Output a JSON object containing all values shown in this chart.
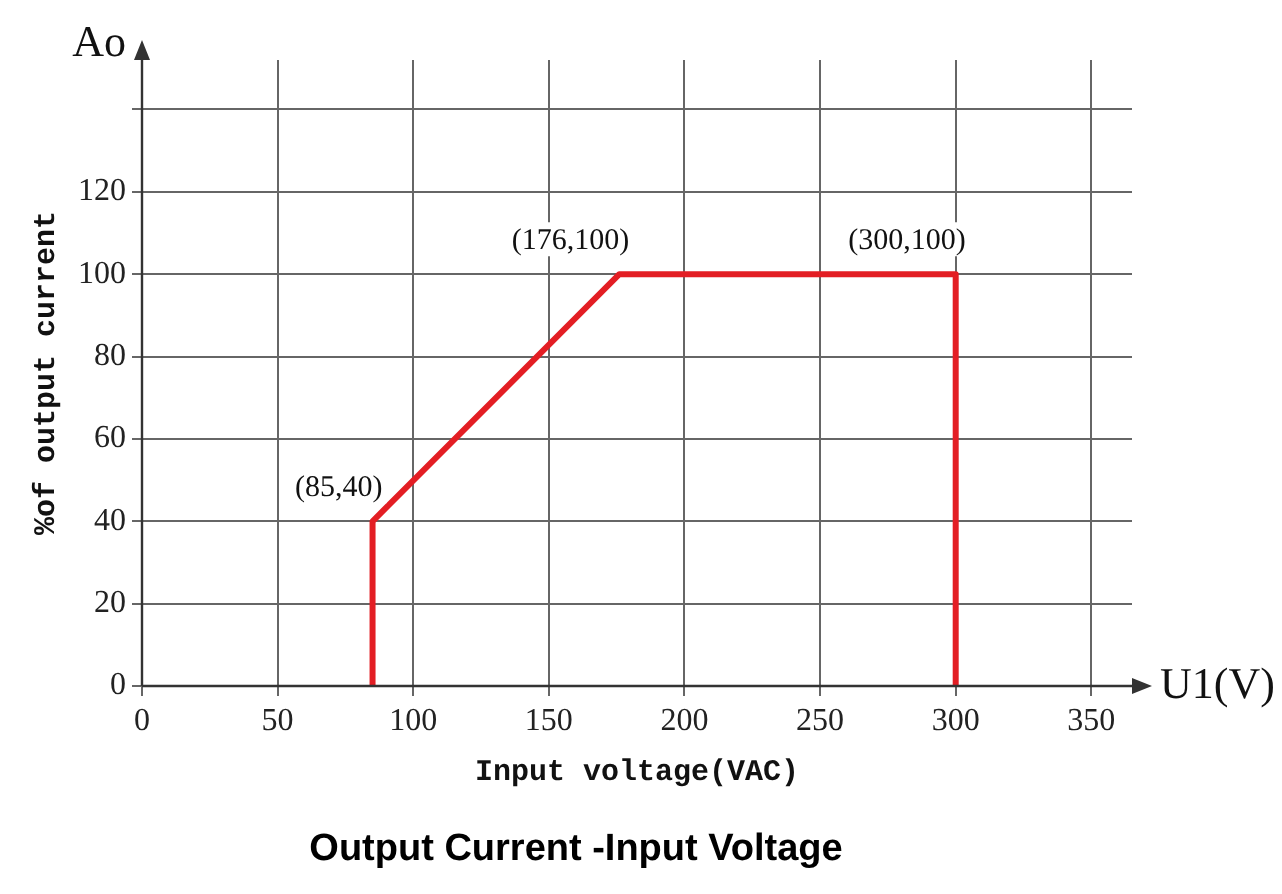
{
  "chart_data": {
    "type": "line",
    "title": "Output Current -Input Voltage",
    "xlabel": "Input voltage(VAC)",
    "ylabel": "%of output current",
    "x": [
      85,
      85,
      176,
      300,
      300
    ],
    "series": [
      {
        "color": "#e31e24",
        "values": [
          0,
          40,
          100,
          100,
          0
        ]
      }
    ],
    "xlim": [
      0,
      365
    ],
    "xticks": [
      0,
      50,
      100,
      150,
      200,
      250,
      300,
      350
    ],
    "ylim": [
      0,
      152
    ],
    "yticks": [
      0,
      20,
      40,
      60,
      80,
      100,
      120,
      {
        "value": 140,
        "label": null
      }
    ],
    "grid": true,
    "legend": false,
    "marker": "none",
    "line_style": "solid",
    "annotations": [
      "Ao",
      "U1(V)",
      {
        "text": "(85,40)",
        "x": 85,
        "y": 40
      },
      {
        "text": "(176,100)",
        "x": 176,
        "y": 100
      },
      {
        "text": "(300,100)",
        "x": 300,
        "y": 100
      }
    ]
  }
}
